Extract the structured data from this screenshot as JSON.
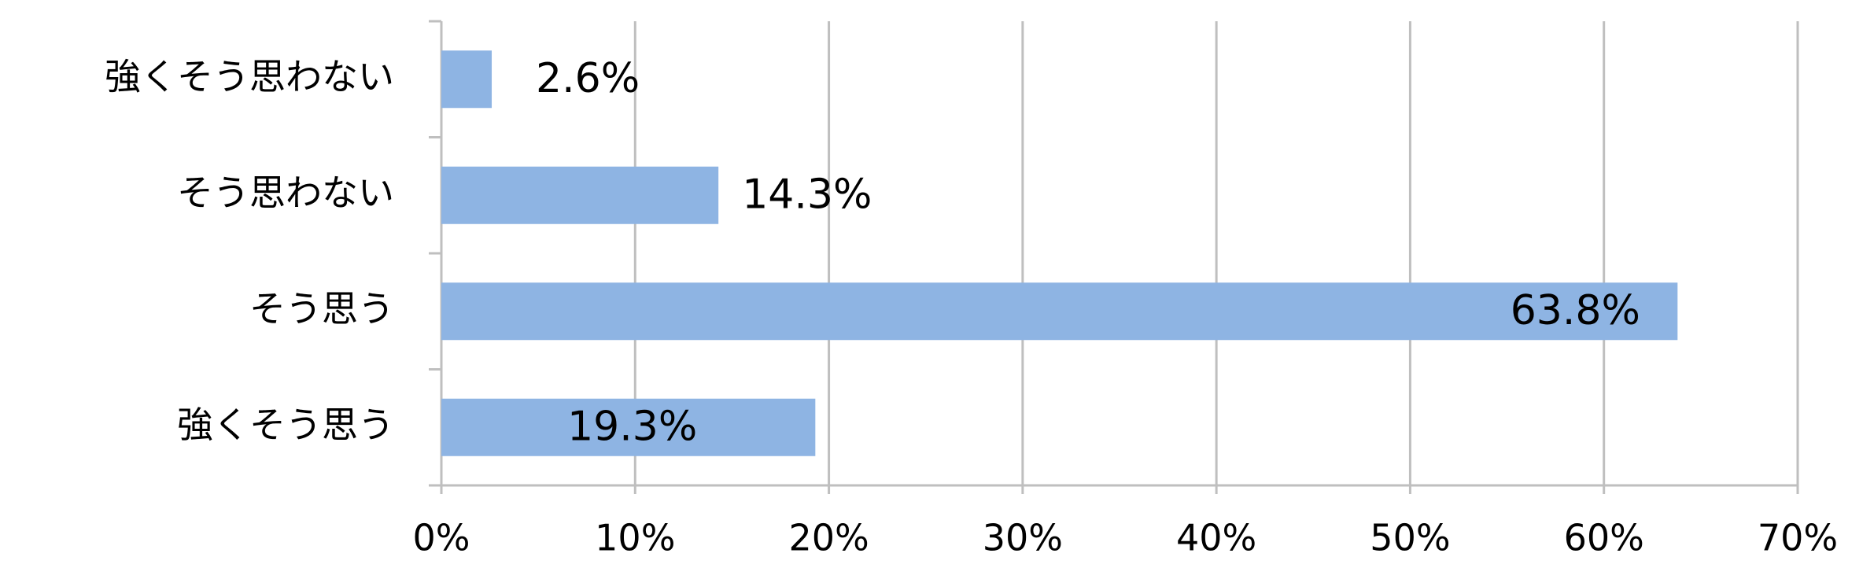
{
  "chart_data": {
    "type": "bar",
    "orientation": "horizontal",
    "categories": [
      "強くそう思わない",
      "そう思わない",
      "そう思う",
      "強くそう思う"
    ],
    "values": [
      2.6,
      14.3,
      63.8,
      19.3
    ],
    "value_labels": [
      "2.6%",
      "14.3%",
      "63.8%",
      "19.3%"
    ],
    "color": "#8eb4e3",
    "xlim": [
      0,
      70
    ],
    "xticks": [
      {
        "value": 0,
        "label": "0%"
      },
      {
        "value": 10,
        "label": "10%"
      },
      {
        "value": 20,
        "label": "20%"
      },
      {
        "value": 30,
        "label": "30%"
      },
      {
        "value": 40,
        "label": "40%"
      },
      {
        "value": 50,
        "label": "50%"
      },
      {
        "value": 60,
        "label": "60%"
      },
      {
        "value": 70,
        "label": "70%"
      }
    ],
    "grid": true
  }
}
